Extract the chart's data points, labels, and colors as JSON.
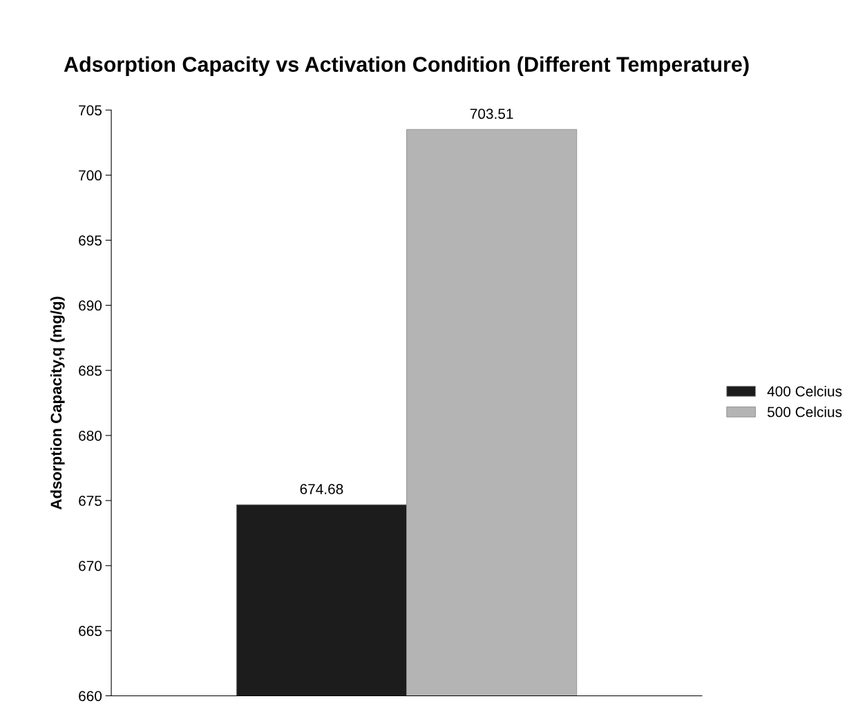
{
  "chart_data": {
    "type": "bar",
    "title": "Adsorption Capacity vs Activation Condition (Different Temperature)",
    "ylabel": "Adsorption Capacity,q (mg/g)",
    "categories": [
      null
    ],
    "series": [
      {
        "name": "400 Celcius",
        "color": "#1c1c1c",
        "values": [
          674.68
        ]
      },
      {
        "name": "500 Celcius",
        "color": "#b4b4b4",
        "values": [
          703.51
        ]
      }
    ],
    "ylim": [
      660,
      705
    ],
    "yticks": [
      660,
      665,
      670,
      675,
      680,
      685,
      690,
      695,
      700,
      705
    ],
    "data_labels": true,
    "legend": "right",
    "grid": false
  }
}
